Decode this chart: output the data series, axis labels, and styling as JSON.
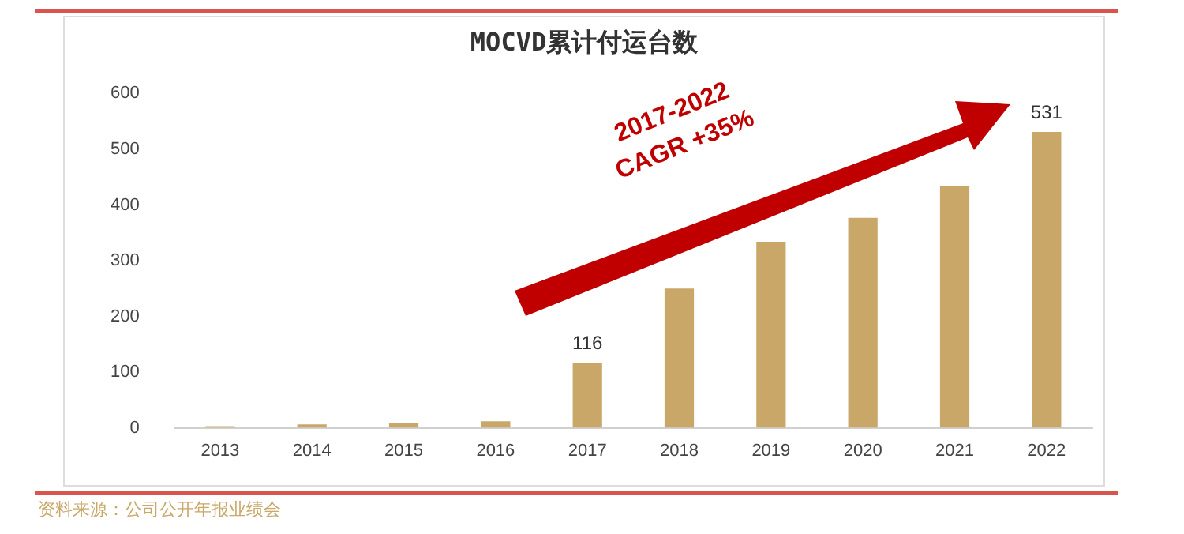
{
  "chart_data": {
    "type": "bar",
    "title": "MOCVD累计付运台数",
    "categories": [
      "2013",
      "2014",
      "2015",
      "2016",
      "2017",
      "2018",
      "2019",
      "2020",
      "2021",
      "2022"
    ],
    "series": [
      {
        "color": "#c9a769",
        "values": [
          3,
          6,
          8,
          12,
          116,
          250,
          334,
          377,
          434,
          531
        ],
        "value_labels": [
          null,
          null,
          null,
          null,
          "116",
          null,
          null,
          null,
          null,
          "531"
        ]
      }
    ],
    "ylim": [
      0,
      600
    ],
    "yticks": [
      0,
      100,
      200,
      300,
      400,
      500,
      600
    ],
    "grid": false,
    "legend": false,
    "annotations": [
      "2017-2022 CAGR +35%",
      "资料来源：公司公开年报业绩会"
    ]
  }
}
